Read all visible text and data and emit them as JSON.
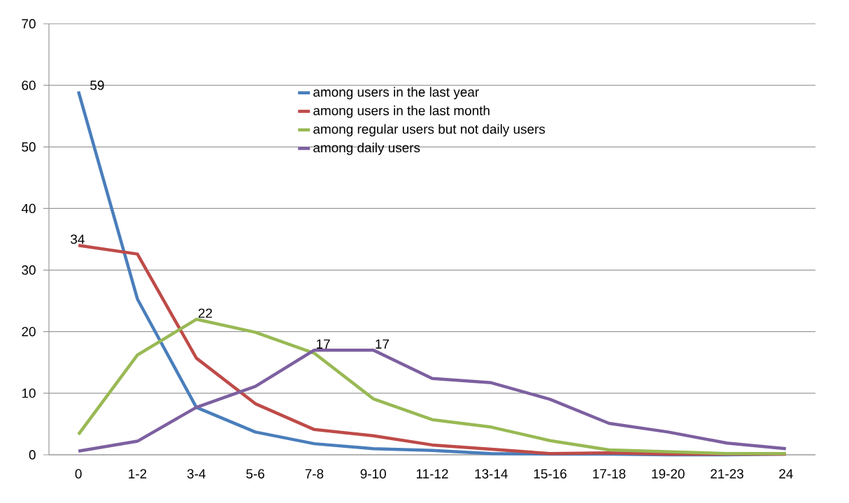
{
  "chart_data": {
    "type": "line",
    "categories": [
      "0",
      "1-2",
      "3-4",
      "5-6",
      "7-8",
      "9-10",
      "11-12",
      "13-14",
      "15-16",
      "17-18",
      "19-20",
      "21-23",
      "24"
    ],
    "series": [
      {
        "name": "among users in the last year",
        "color": "#4a7ebb",
        "values": [
          59,
          25.3,
          7.7,
          3.7,
          1.8,
          1.0,
          0.7,
          0.2,
          0.1,
          0.1,
          0,
          0,
          0.1
        ],
        "value_labels": [
          "59",
          null,
          null,
          null,
          null,
          null,
          null,
          null,
          null,
          null,
          null,
          null,
          null
        ]
      },
      {
        "name": "among users in the last month",
        "color": "#be4b48",
        "values": [
          34,
          32.6,
          15.7,
          8.3,
          4.1,
          3.1,
          1.6,
          0.9,
          0.2,
          0.3,
          0.1,
          0.1,
          0.1
        ],
        "value_labels": [
          "34",
          null,
          null,
          null,
          null,
          null,
          null,
          null,
          null,
          null,
          null,
          null,
          null
        ]
      },
      {
        "name": "among regular users but not daily users",
        "color": "#98b954",
        "values": [
          3.3,
          16.2,
          22,
          19.9,
          16.5,
          9.1,
          5.7,
          4.5,
          2.3,
          0.8,
          0.5,
          0.2,
          0.2
        ],
        "value_labels": [
          null,
          null,
          "22",
          null,
          null,
          null,
          null,
          null,
          null,
          null,
          null,
          null,
          null
        ]
      },
      {
        "name": "among daily users",
        "color": "#7d60a0",
        "values": [
          0.6,
          2.2,
          7.7,
          11.1,
          17,
          17,
          12.4,
          11.7,
          9.0,
          5.1,
          3.7,
          1.9,
          1.0
        ],
        "value_labels": [
          null,
          null,
          null,
          null,
          "17",
          "17",
          null,
          null,
          null,
          null,
          null,
          null,
          null
        ]
      }
    ],
    "ylim": [
      0,
      70
    ],
    "yticks": [
      0,
      10,
      20,
      30,
      40,
      50,
      60,
      70
    ],
    "grid": "y",
    "legend": "top",
    "marker": "none",
    "line_style": "solid"
  }
}
